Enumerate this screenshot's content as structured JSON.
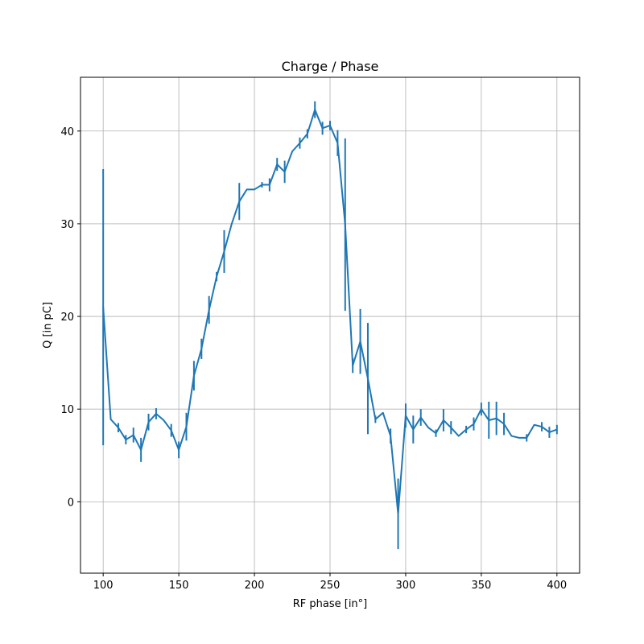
{
  "chart_data": {
    "type": "line",
    "title": "Charge / Phase",
    "xlabel": "RF phase [in°]",
    "ylabel": "Q   [in   pC]",
    "xlim": [
      85,
      415
    ],
    "ylim": [
      -7.7,
      45.8
    ],
    "xticks": [
      100,
      150,
      200,
      250,
      300,
      350,
      400
    ],
    "yticks": [
      0,
      10,
      20,
      30,
      40
    ],
    "grid": true,
    "color": "#1f77b4",
    "series": [
      {
        "x": [
          100,
          105,
          110,
          115,
          120,
          125,
          130,
          135,
          140,
          145,
          150,
          155,
          160,
          165,
          170,
          175,
          180,
          185,
          190,
          195,
          200,
          205,
          210,
          215,
          220,
          225,
          230,
          235,
          240,
          245,
          250,
          255,
          260,
          265,
          270,
          275,
          280,
          285,
          290,
          295,
          300,
          305,
          310,
          315,
          320,
          325,
          330,
          335,
          340,
          345,
          350,
          355,
          360,
          365,
          370,
          375,
          380,
          385,
          390,
          395,
          400
        ],
        "y": [
          21,
          8.9,
          8.0,
          6.7,
          7.2,
          5.6,
          8.6,
          9.5,
          8.8,
          7.7,
          5.6,
          8.1,
          13.6,
          16.5,
          20.7,
          24.3,
          27.0,
          30.0,
          32.4,
          33.7,
          33.7,
          34.2,
          34.2,
          36.4,
          35.6,
          37.8,
          38.7,
          39.7,
          42.3,
          40.3,
          40.6,
          38.7,
          29.9,
          14.7,
          17.3,
          13.3,
          8.9,
          9.6,
          7.1,
          -1.3,
          9.3,
          7.8,
          9.1,
          8.0,
          7.4,
          8.8,
          8.0,
          7.1,
          7.8,
          8.4,
          10.0,
          8.8,
          9.0,
          8.4,
          7.1,
          6.9,
          6.9,
          8.3,
          8.1,
          7.5,
          7.8
        ],
        "err": [
          14.9,
          0,
          0.5,
          0.5,
          0.8,
          1.3,
          0.9,
          0.6,
          0,
          0.7,
          0.9,
          1.5,
          1.6,
          1.1,
          1.5,
          0.5,
          2.3,
          0,
          2.0,
          0,
          0,
          0.3,
          0.7,
          0.7,
          1.2,
          0,
          0.6,
          0.5,
          0.9,
          0.7,
          0.5,
          1.4,
          9.3,
          0.8,
          3.5,
          6.0,
          0.4,
          0,
          0.8,
          3.8,
          1.3,
          1.5,
          0.9,
          0,
          0.4,
          1.2,
          0.7,
          0,
          0.4,
          0.7,
          0.7,
          2.0,
          1.8,
          1.2,
          0,
          0,
          0.4,
          0,
          0.5,
          0.6,
          0.5
        ]
      }
    ]
  }
}
